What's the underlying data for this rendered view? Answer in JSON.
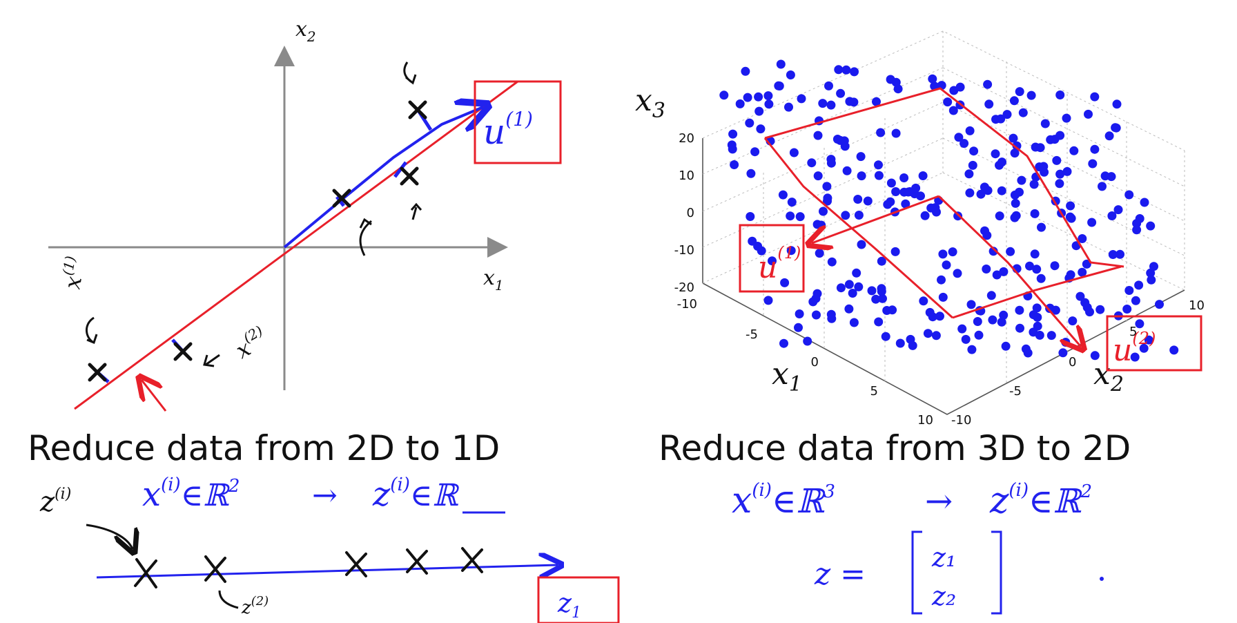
{
  "left_plot": {
    "x_axis_label": "x",
    "x_axis_sub": "1",
    "y_axis_label": "x",
    "y_axis_sub": "2",
    "vector_label": "u",
    "vector_sup": "(1)",
    "point_label_1": "x",
    "point_sup_1": "(1)",
    "point_label_2": "x",
    "point_sup_2": "(2)",
    "caption": "Reduce data from 2D to 1D",
    "mapping_left": "x",
    "mapping_sup": "(i)",
    "mapping_in": "∈ℝ",
    "mapping_pow": "2",
    "mapping_arrow": "→",
    "mapping_right": "z",
    "mapping_right_sup": "(i)",
    "mapping_right_in": "∈ℝ",
    "line_label_z": "z",
    "line_label_z_sup": "(i)",
    "line_label_z2": "z",
    "line_label_z2_sup": "(2)",
    "line_axis_label": "z",
    "line_axis_sub": "1"
  },
  "right_plot": {
    "x1_label": "x",
    "x1_sub": "1",
    "x2_label": "x",
    "x2_sub": "2",
    "x3_label": "x",
    "x3_sub": "3",
    "z_ticks": [
      "20",
      "10",
      "0",
      "-10",
      "-20"
    ],
    "x1_ticks": [
      "-10",
      "-5",
      "0",
      "5",
      "10"
    ],
    "x2_ticks": [
      "-10",
      "-5",
      "0",
      "5",
      "10"
    ],
    "u1_label": "u",
    "u1_sup": "(1)",
    "u2_label": "u",
    "u2_sup": "(2)",
    "caption": "Reduce data from 3D to 2D",
    "mapping_left": "x",
    "mapping_sup": "(i)",
    "mapping_in": "∈ℝ",
    "mapping_pow": "3",
    "mapping_arrow": "→",
    "mapping_right": "z",
    "mapping_right_sup": "(i)",
    "mapping_right_in": "∈ℝ",
    "mapping_right_pow": "2",
    "z_vector_lhs": "z =",
    "z_vector_entries": [
      "z₁",
      "z₂"
    ]
  },
  "colors": {
    "axis": "#8a8a8a",
    "line_red": "#e8202a",
    "ink_blue": "#2222ee",
    "ink_black": "#111111",
    "dots": "#1a1aee"
  }
}
